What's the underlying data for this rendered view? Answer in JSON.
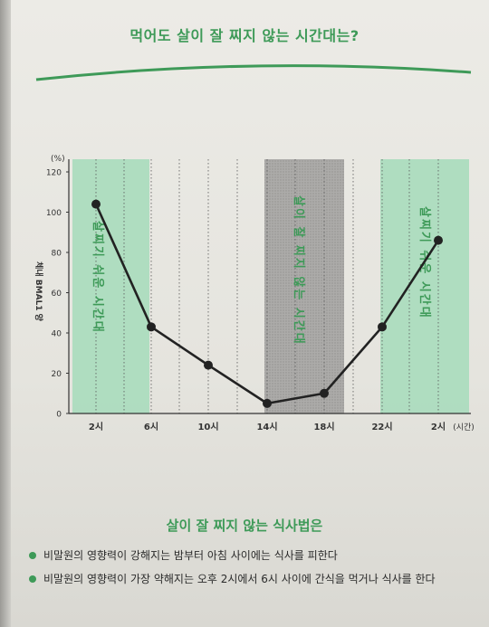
{
  "title": "먹어도 살이 잘 찌지 않는 시간대는?",
  "colors": {
    "accent": "#3e9a58",
    "band_green": "#a9dcbd",
    "band_gray": "#a9a8a6",
    "line": "#222222"
  },
  "chart_data": {
    "type": "line",
    "xlabel": "(시간)",
    "ylabel": "체내 BMAL1 양",
    "yunit": "(%)",
    "ylim": [
      0,
      120
    ],
    "yticks": [
      0,
      20,
      40,
      60,
      80,
      100,
      120
    ],
    "xticks": [
      "2시",
      "6시",
      "10시",
      "14시",
      "18시",
      "22시",
      "2시"
    ],
    "series": [
      {
        "x": [
          "2시",
          "6시",
          "10시",
          "14시",
          "18시",
          "22시",
          "2시"
        ],
        "values": [
          104,
          43,
          24,
          5,
          10,
          43,
          86
        ]
      }
    ],
    "bands": [
      {
        "from": "2시",
        "to": "6시",
        "label": "살찌기 쉬운 시간대",
        "kind": "green"
      },
      {
        "from": "14시",
        "to": "18시",
        "label": "살이 잘 찌지 않는 시간대",
        "kind": "gray"
      },
      {
        "from": "22시",
        "to": "2시",
        "label": "살찌기 쉬운 시간대",
        "kind": "green"
      }
    ]
  },
  "subtitle": "살이 잘 찌지 않는 식사법은",
  "bullets": [
    "비말원의 영향력이 강해지는 밤부터 아침 사이에는 식사를 피한다",
    "비말원의 영향력이 가장 약해지는 오후 2시에서 6시 사이에 간식을 먹거나 식사를 한다"
  ]
}
